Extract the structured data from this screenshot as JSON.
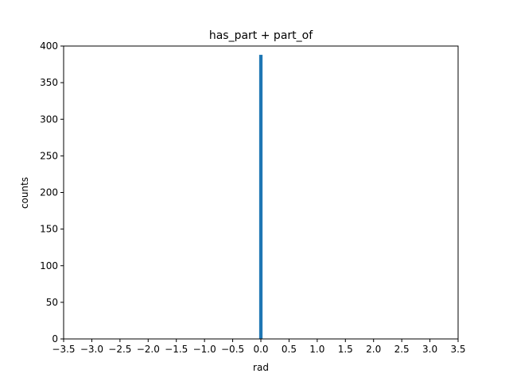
{
  "chart_data": {
    "type": "bar",
    "title": "has_part + part_of",
    "xlabel": "rad",
    "ylabel": "counts",
    "xlim": [
      -3.5,
      3.5
    ],
    "ylim": [
      0,
      400
    ],
    "xticks": [
      "−3.5",
      "−3.0",
      "−2.5",
      "−2.0",
      "−1.5",
      "−1.0",
      "−0.5",
      "0.0",
      "0.5",
      "1.0",
      "1.5",
      "2.0",
      "2.5",
      "3.0",
      "3.5"
    ],
    "xtick_values": [
      -3.5,
      -3.0,
      -2.5,
      -2.0,
      -1.5,
      -1.0,
      -0.5,
      0.0,
      0.5,
      1.0,
      1.5,
      2.0,
      2.5,
      3.0,
      3.5
    ],
    "yticks": [
      "0",
      "50",
      "100",
      "150",
      "200",
      "250",
      "300",
      "350",
      "400"
    ],
    "ytick_values": [
      0,
      50,
      100,
      150,
      200,
      250,
      300,
      350,
      400
    ],
    "bins": [
      {
        "x0": -0.03,
        "x1": 0.03,
        "count": 388
      }
    ],
    "grid": false,
    "legend": "none",
    "bar_color": "#1f77b4"
  }
}
